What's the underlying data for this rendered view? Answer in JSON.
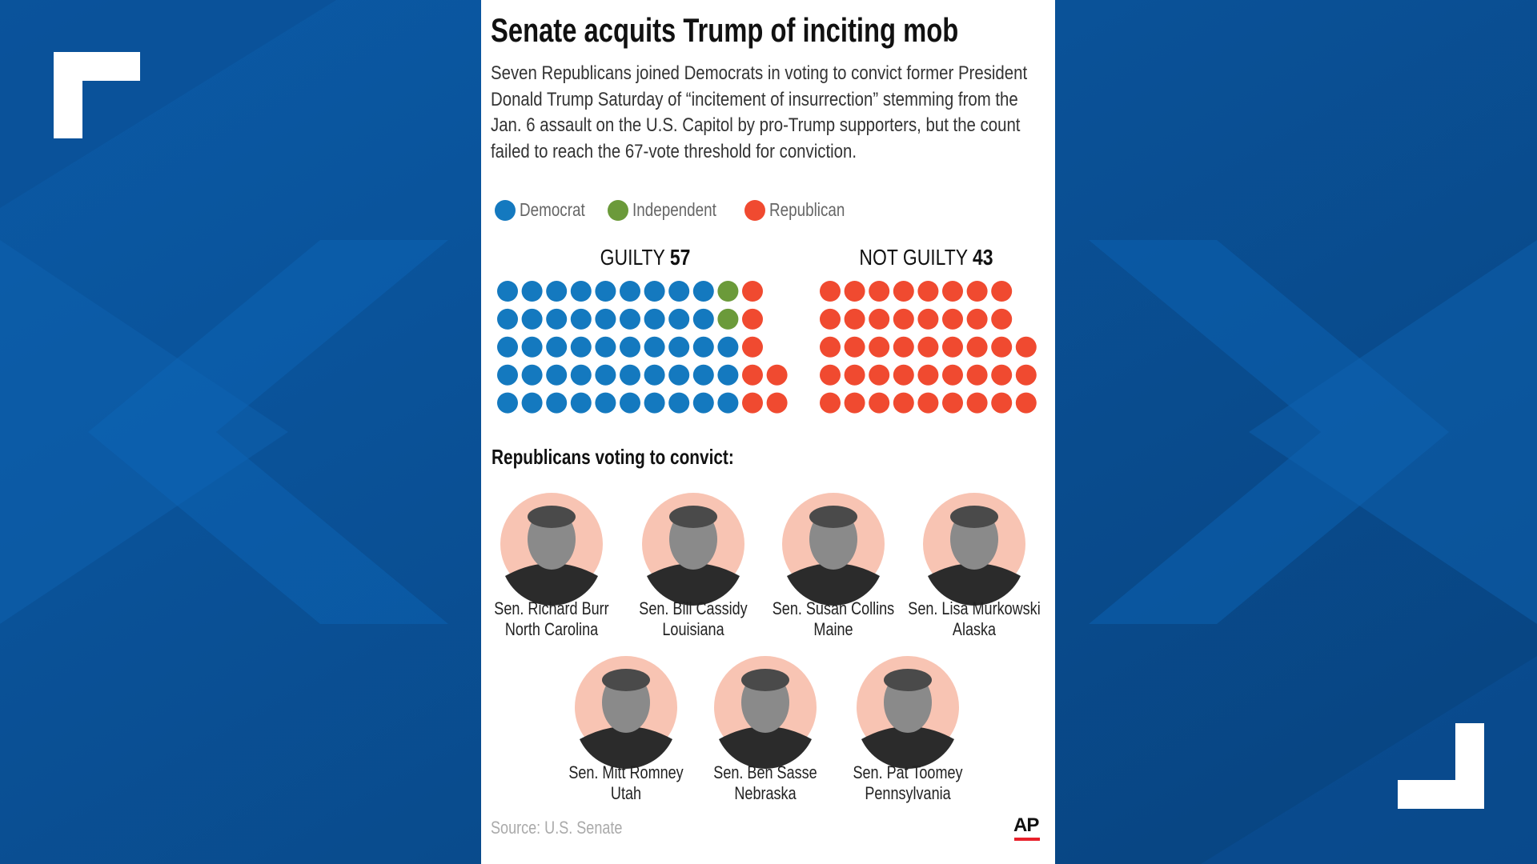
{
  "chart_data": {
    "type": "waffle",
    "title": "Senate acquits Trump of inciting mob",
    "subtitle": "Seven Republicans joined Democrats in voting to convict former President Donald Trump Saturday of “incitement of insurrection” stemming from the Jan. 6 assault on the U.S. Capitol by pro-Trump supporters, but the count failed to reach the 67-vote threshold for conviction.",
    "series": [
      {
        "name": "Democrat",
        "color": "#1479bf"
      },
      {
        "name": "Independent",
        "color": "#6b9a3a"
      },
      {
        "name": "Republican",
        "color": "#f04a30"
      }
    ],
    "groups": [
      {
        "label": "GUILTY",
        "total": 57,
        "counts": [
          48,
          2,
          7
        ]
      },
      {
        "label": "NOT GUILTY",
        "total": 43,
        "counts": [
          0,
          0,
          43
        ]
      }
    ],
    "rows": 5
  },
  "senators": {
    "heading": "Republicans voting to convict:",
    "people": [
      {
        "name": "Sen. Richard Burr",
        "state": "North Carolina"
      },
      {
        "name": "Sen. Bill Cassidy",
        "state": "Louisiana"
      },
      {
        "name": "Sen. Susan Collins",
        "state": "Maine"
      },
      {
        "name": "Sen. Lisa Murkowski",
        "state": "Alaska"
      },
      {
        "name": "Sen. Mitt Romney",
        "state": "Utah"
      },
      {
        "name": "Sen. Ben Sasse",
        "state": "Nebraska"
      },
      {
        "name": "Sen. Pat Toomey",
        "state": "Pennsylvania"
      }
    ]
  },
  "source": "Source: U.S. Senate",
  "credit": "AP"
}
